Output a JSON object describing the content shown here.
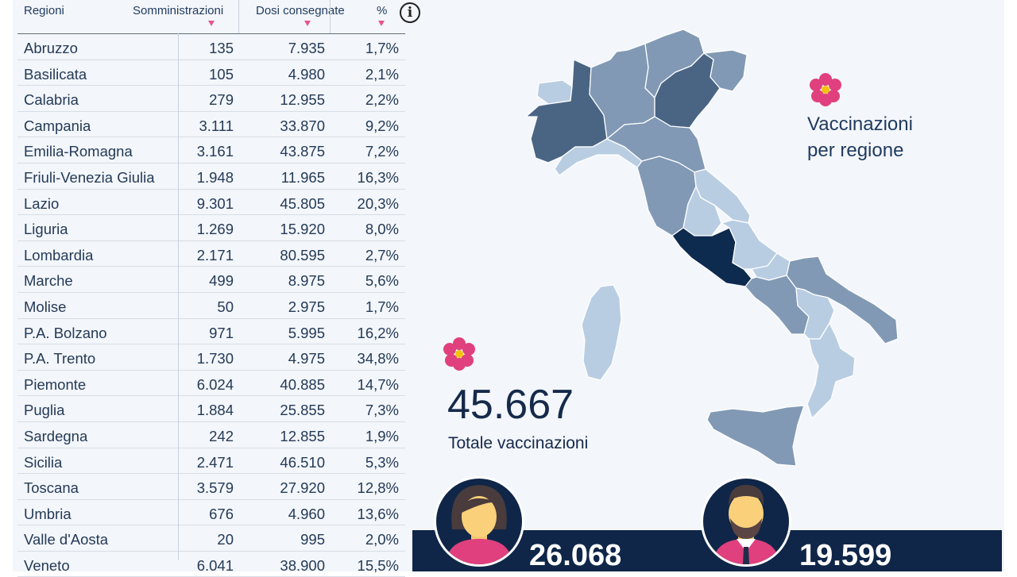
{
  "table": {
    "headers": [
      "Regioni",
      "Somministrazioni",
      "Dosi consegnate",
      "%"
    ],
    "rows": [
      [
        "Abruzzo",
        "135",
        "7.935",
        "1,7%"
      ],
      [
        "Basilicata",
        "105",
        "4.980",
        "2,1%"
      ],
      [
        "Calabria",
        "279",
        "12.955",
        "2,2%"
      ],
      [
        "Campania",
        "3.111",
        "33.870",
        "9,2%"
      ],
      [
        "Emilia-Romagna",
        "3.161",
        "43.875",
        "7,2%"
      ],
      [
        "Friuli-Venezia Giulia",
        "1.948",
        "11.965",
        "16,3%"
      ],
      [
        "Lazio",
        "9.301",
        "45.805",
        "20,3%"
      ],
      [
        "Liguria",
        "1.269",
        "15.920",
        "8,0%"
      ],
      [
        "Lombardia",
        "2.171",
        "80.595",
        "2,7%"
      ],
      [
        "Marche",
        "499",
        "8.975",
        "5,6%"
      ],
      [
        "Molise",
        "50",
        "2.975",
        "1,7%"
      ],
      [
        "P.A. Bolzano",
        "971",
        "5.995",
        "16,2%"
      ],
      [
        "P.A. Trento",
        "1.730",
        "4.975",
        "34,8%"
      ],
      [
        "Piemonte",
        "6.024",
        "40.885",
        "14,7%"
      ],
      [
        "Puglia",
        "1.884",
        "25.855",
        "7,3%"
      ],
      [
        "Sardegna",
        "242",
        "12.855",
        "1,9%"
      ],
      [
        "Sicilia",
        "2.471",
        "46.510",
        "5,3%"
      ],
      [
        "Toscana",
        "3.579",
        "27.920",
        "12,8%"
      ],
      [
        "Umbria",
        "676",
        "4.960",
        "13,6%"
      ],
      [
        "Valle d'Aosta",
        "20",
        "995",
        "2,0%"
      ],
      [
        "Veneto",
        "6.041",
        "38.900",
        "15,5%"
      ]
    ]
  },
  "info_icon": "i",
  "map_title_line1": "Vaccinazioni",
  "map_title_line2": "per regione",
  "total_value": "45.667",
  "total_label": "Totale vaccinazioni",
  "female_count": "26.068",
  "male_count": "19.599",
  "colors": {
    "accent_pink": "#e8558e",
    "navy": "#0f2648",
    "text": "#243a57",
    "region_darkest": "#0d2a4f",
    "region_dark": "#4a6584",
    "region_mid": "#8199b4",
    "region_light": "#b9cde2"
  },
  "icons": [
    "info-icon",
    "flower-icon",
    "female-avatar-icon",
    "male-avatar-icon",
    "sort-desc-icon"
  ]
}
